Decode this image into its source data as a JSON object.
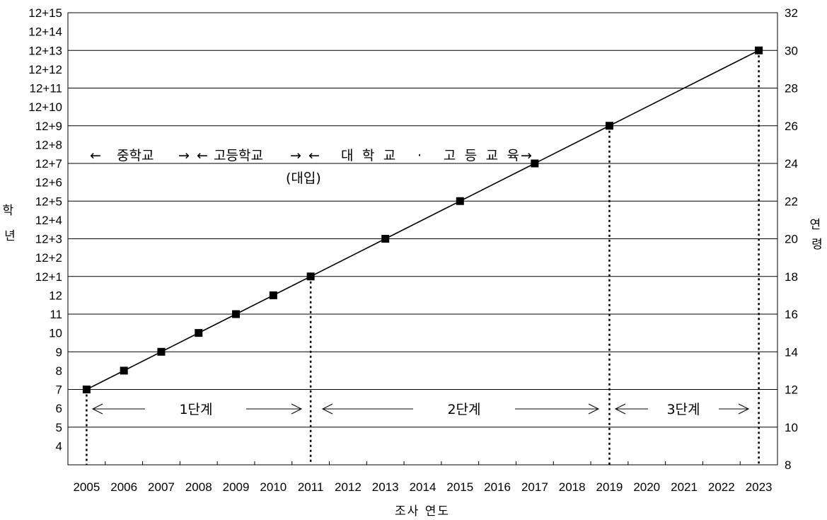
{
  "chart_data": {
    "type": "line",
    "title": "",
    "xlabel": "조사 연도",
    "ylabel_left": "학년",
    "ylabel_right": "연령",
    "x": [
      "2005",
      "2006",
      "2007",
      "2008",
      "2009",
      "2010",
      "2011",
      "2012",
      "2013",
      "2014",
      "2015",
      "2016",
      "2017",
      "2018",
      "2019",
      "2020",
      "2021",
      "2022",
      "2023"
    ],
    "left_ticks": [
      "4",
      "5",
      "6",
      "7",
      "8",
      "9",
      "10",
      "11",
      "12",
      "12+1",
      "12+2",
      "12+3",
      "12+4",
      "12+5",
      "12+6",
      "12+7",
      "12+8",
      "12+9",
      "12+10",
      "12+11",
      "12+12",
      "12+13",
      "12+14",
      "12+15"
    ],
    "right_ticks": [
      "8",
      "10",
      "12",
      "14",
      "16",
      "18",
      "20",
      "22",
      "24",
      "26",
      "28",
      "30",
      "32"
    ],
    "right_ylim": [
      8,
      32
    ],
    "series": [
      {
        "points": [
          {
            "x": "2005",
            "y": 12
          },
          {
            "x": "2006",
            "y": 13
          },
          {
            "x": "2007",
            "y": 14
          },
          {
            "x": "2008",
            "y": 15
          },
          {
            "x": "2009",
            "y": 16
          },
          {
            "x": "2010",
            "y": 17
          },
          {
            "x": "2011",
            "y": 18
          },
          {
            "x": "2013",
            "y": 20
          },
          {
            "x": "2015",
            "y": 22
          },
          {
            "x": "2017",
            "y": 24
          },
          {
            "x": "2019",
            "y": 26
          },
          {
            "x": "2023",
            "y": 30
          }
        ]
      }
    ],
    "drop_lines_at": [
      "2005",
      "2011",
      "2019",
      "2023"
    ],
    "school_annotation": {
      "middle": "중학교",
      "high": "고등학교",
      "college": "대학교 · 고등교육",
      "exam": "(대입)"
    },
    "stages": [
      "1단계",
      "2단계",
      "3단계"
    ],
    "grid": "horizontal",
    "legend": "none"
  }
}
